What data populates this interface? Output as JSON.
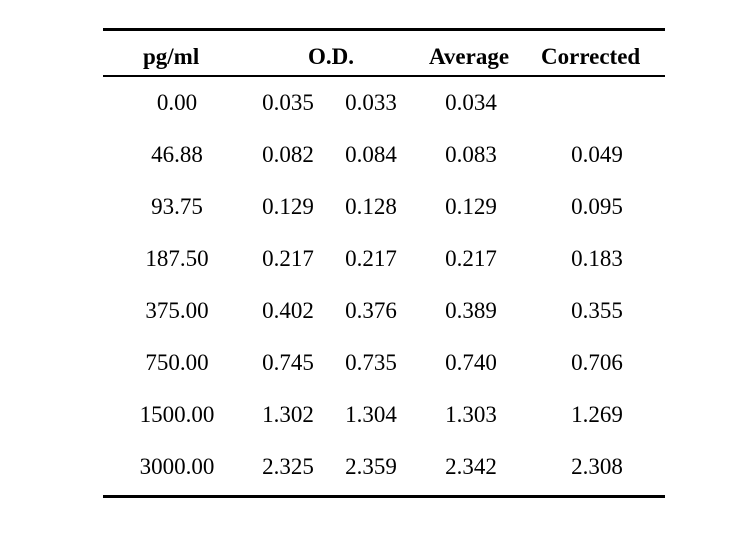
{
  "table": {
    "headers": {
      "concentration": "pg/ml",
      "od": "O.D.",
      "average": "Average",
      "corrected": "Corrected"
    },
    "rows": [
      {
        "concentration": "0.00",
        "od1": "0.035",
        "od2": "0.033",
        "average": "0.034",
        "corrected": ""
      },
      {
        "concentration": "46.88",
        "od1": "0.082",
        "od2": "0.084",
        "average": "0.083",
        "corrected": "0.049"
      },
      {
        "concentration": "93.75",
        "od1": "0.129",
        "od2": "0.128",
        "average": "0.129",
        "corrected": "0.095"
      },
      {
        "concentration": "187.50",
        "od1": "0.217",
        "od2": "0.217",
        "average": "0.217",
        "corrected": "0.183"
      },
      {
        "concentration": "375.00",
        "od1": "0.402",
        "od2": "0.376",
        "average": "0.389",
        "corrected": "0.355"
      },
      {
        "concentration": "750.00",
        "od1": "0.745",
        "od2": "0.735",
        "average": "0.740",
        "corrected": "0.706"
      },
      {
        "concentration": "1500.00",
        "od1": "1.302",
        "od2": "1.304",
        "average": "1.303",
        "corrected": "1.269"
      },
      {
        "concentration": "3000.00",
        "od1": "2.325",
        "od2": "2.359",
        "average": "2.342",
        "corrected": "2.308"
      }
    ]
  }
}
